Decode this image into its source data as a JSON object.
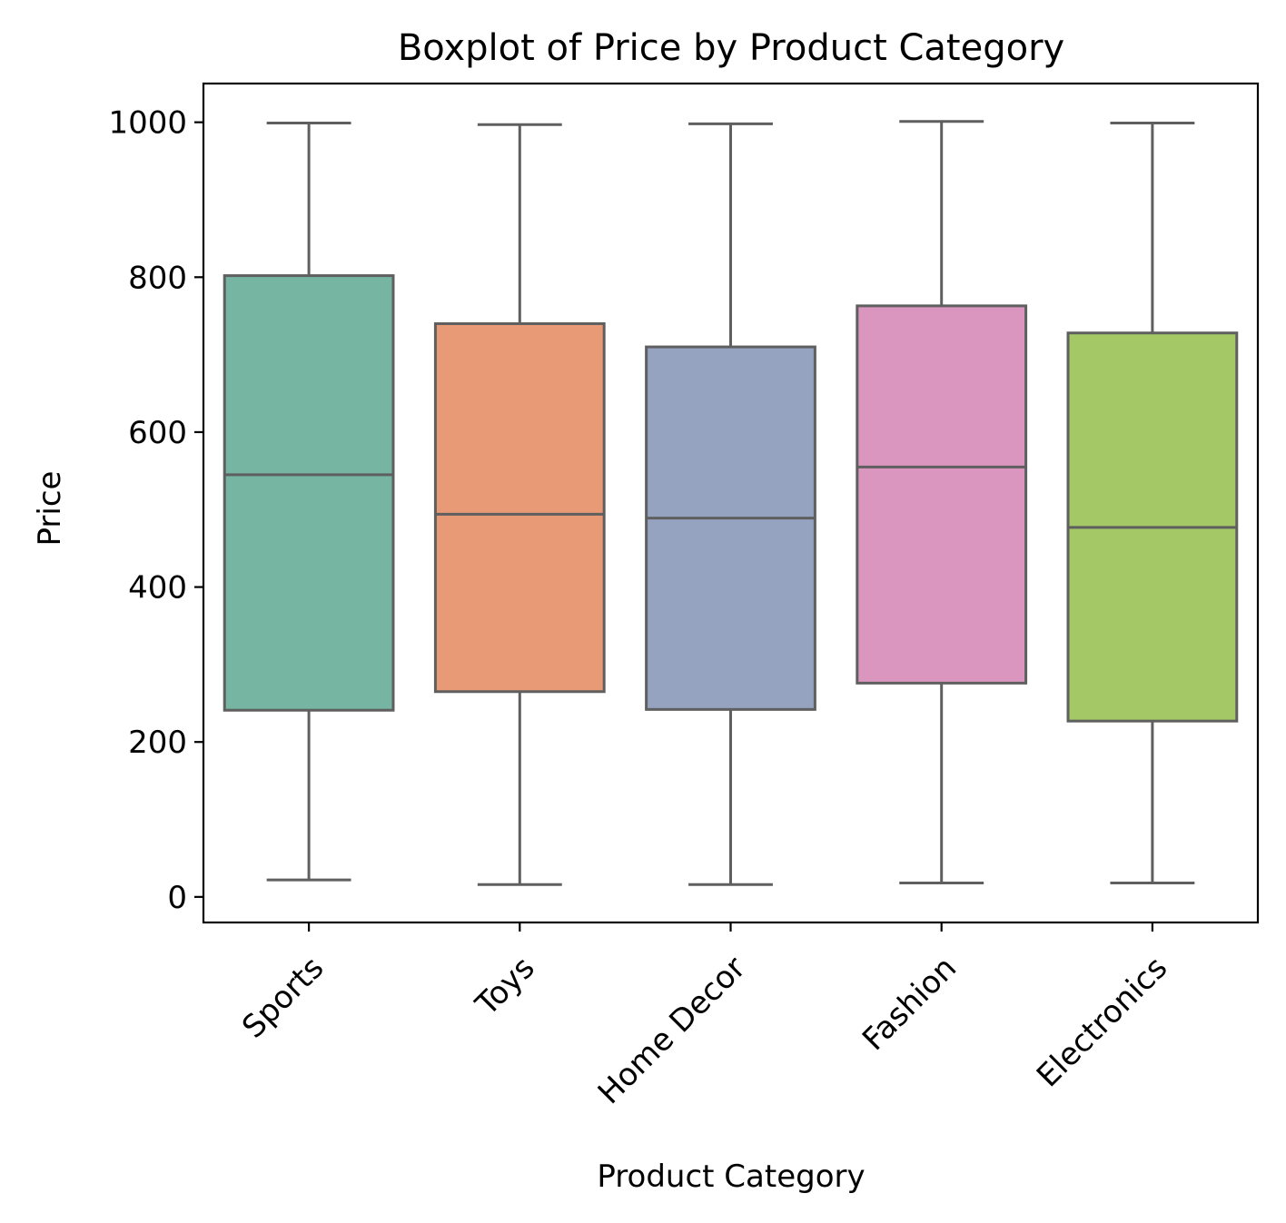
{
  "chart_data": {
    "type": "box",
    "title": "Boxplot of Price by Product Category",
    "xlabel": "Product Category",
    "ylabel": "Price",
    "ylim": [
      -33,
      1050
    ],
    "yticks": [
      0,
      200,
      400,
      600,
      800,
      1000
    ],
    "categories": [
      "Sports",
      "Toys",
      "Home Decor",
      "Fashion",
      "Electronics"
    ],
    "boxes": [
      {
        "category": "Sports",
        "whisker_low": 22,
        "q1": 241,
        "median": 545,
        "q3": 802,
        "whisker_high": 999,
        "color": "#75b5a1"
      },
      {
        "category": "Toys",
        "whisker_low": 16,
        "q1": 265,
        "median": 494,
        "q3": 740,
        "whisker_high": 997,
        "color": "#e89976"
      },
      {
        "category": "Home Decor",
        "whisker_low": 16,
        "q1": 242,
        "median": 489,
        "q3": 710,
        "whisker_high": 998,
        "color": "#95a3c1"
      },
      {
        "category": "Fashion",
        "whisker_low": 18,
        "q1": 276,
        "median": 555,
        "q3": 763,
        "whisker_high": 1001,
        "color": "#da96be"
      },
      {
        "category": "Electronics",
        "whisker_low": 18,
        "q1": 227,
        "median": 477,
        "q3": 728,
        "whisker_high": 999,
        "color": "#a3c865"
      }
    ],
    "grid": false,
    "line_color": "#5f5f5f",
    "frame_color": "#000000"
  }
}
